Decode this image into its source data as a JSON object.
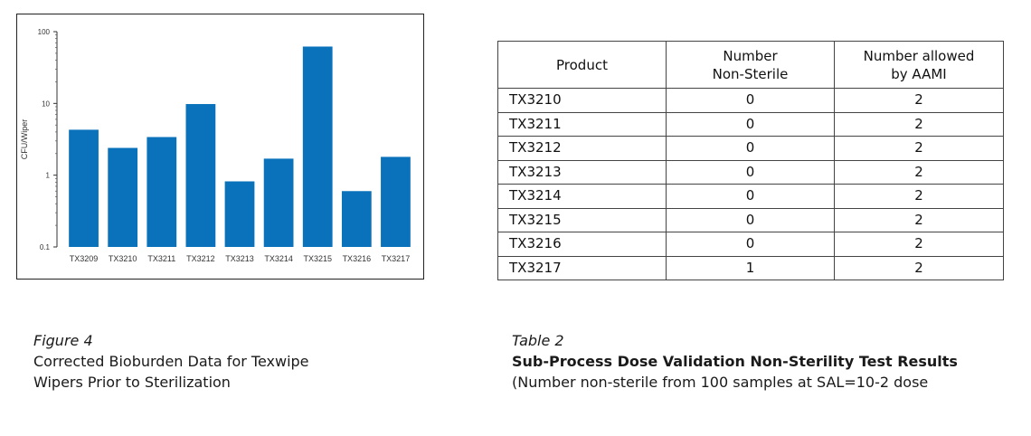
{
  "chart_data": {
    "type": "bar",
    "ylabel": "CFU/Wiper",
    "yscale": "log",
    "ylim": [
      0.1,
      100
    ],
    "yticks": [
      "0.1",
      "1",
      "10",
      "100"
    ],
    "categories": [
      "TX3209",
      "TX3210",
      "TX3211",
      "TX3212",
      "TX3213",
      "TX3214",
      "TX3215",
      "TX3216",
      "TX3217"
    ],
    "values": [
      4.3,
      2.4,
      3.4,
      9.8,
      0.82,
      1.7,
      62,
      0.6,
      1.8
    ],
    "bar_color": "#0a72bb",
    "grid": false
  },
  "table": {
    "headers": [
      [
        "Product"
      ],
      [
        "Number",
        "Non-Sterile"
      ],
      [
        "Number allowed",
        "by AAMI"
      ]
    ],
    "rows": [
      [
        "TX3210",
        "0",
        "2"
      ],
      [
        "TX3211",
        "0",
        "2"
      ],
      [
        "TX3212",
        "0",
        "2"
      ],
      [
        "TX3213",
        "0",
        "2"
      ],
      [
        "TX3214",
        "0",
        "2"
      ],
      [
        "TX3215",
        "0",
        "2"
      ],
      [
        "TX3216",
        "0",
        "2"
      ],
      [
        "TX3217",
        "1",
        "2"
      ]
    ]
  },
  "figure_caption": {
    "label": "Figure 4",
    "line1": "Corrected Bioburden Data for Texwipe",
    "line2": "Wipers Prior to Sterilization"
  },
  "table_caption": {
    "label": "Table 2",
    "title": "Sub-Process Dose Validation Non-Sterility Test Results",
    "note": "(Number non-sterile from 100 samples at SAL=10-2 dose"
  }
}
